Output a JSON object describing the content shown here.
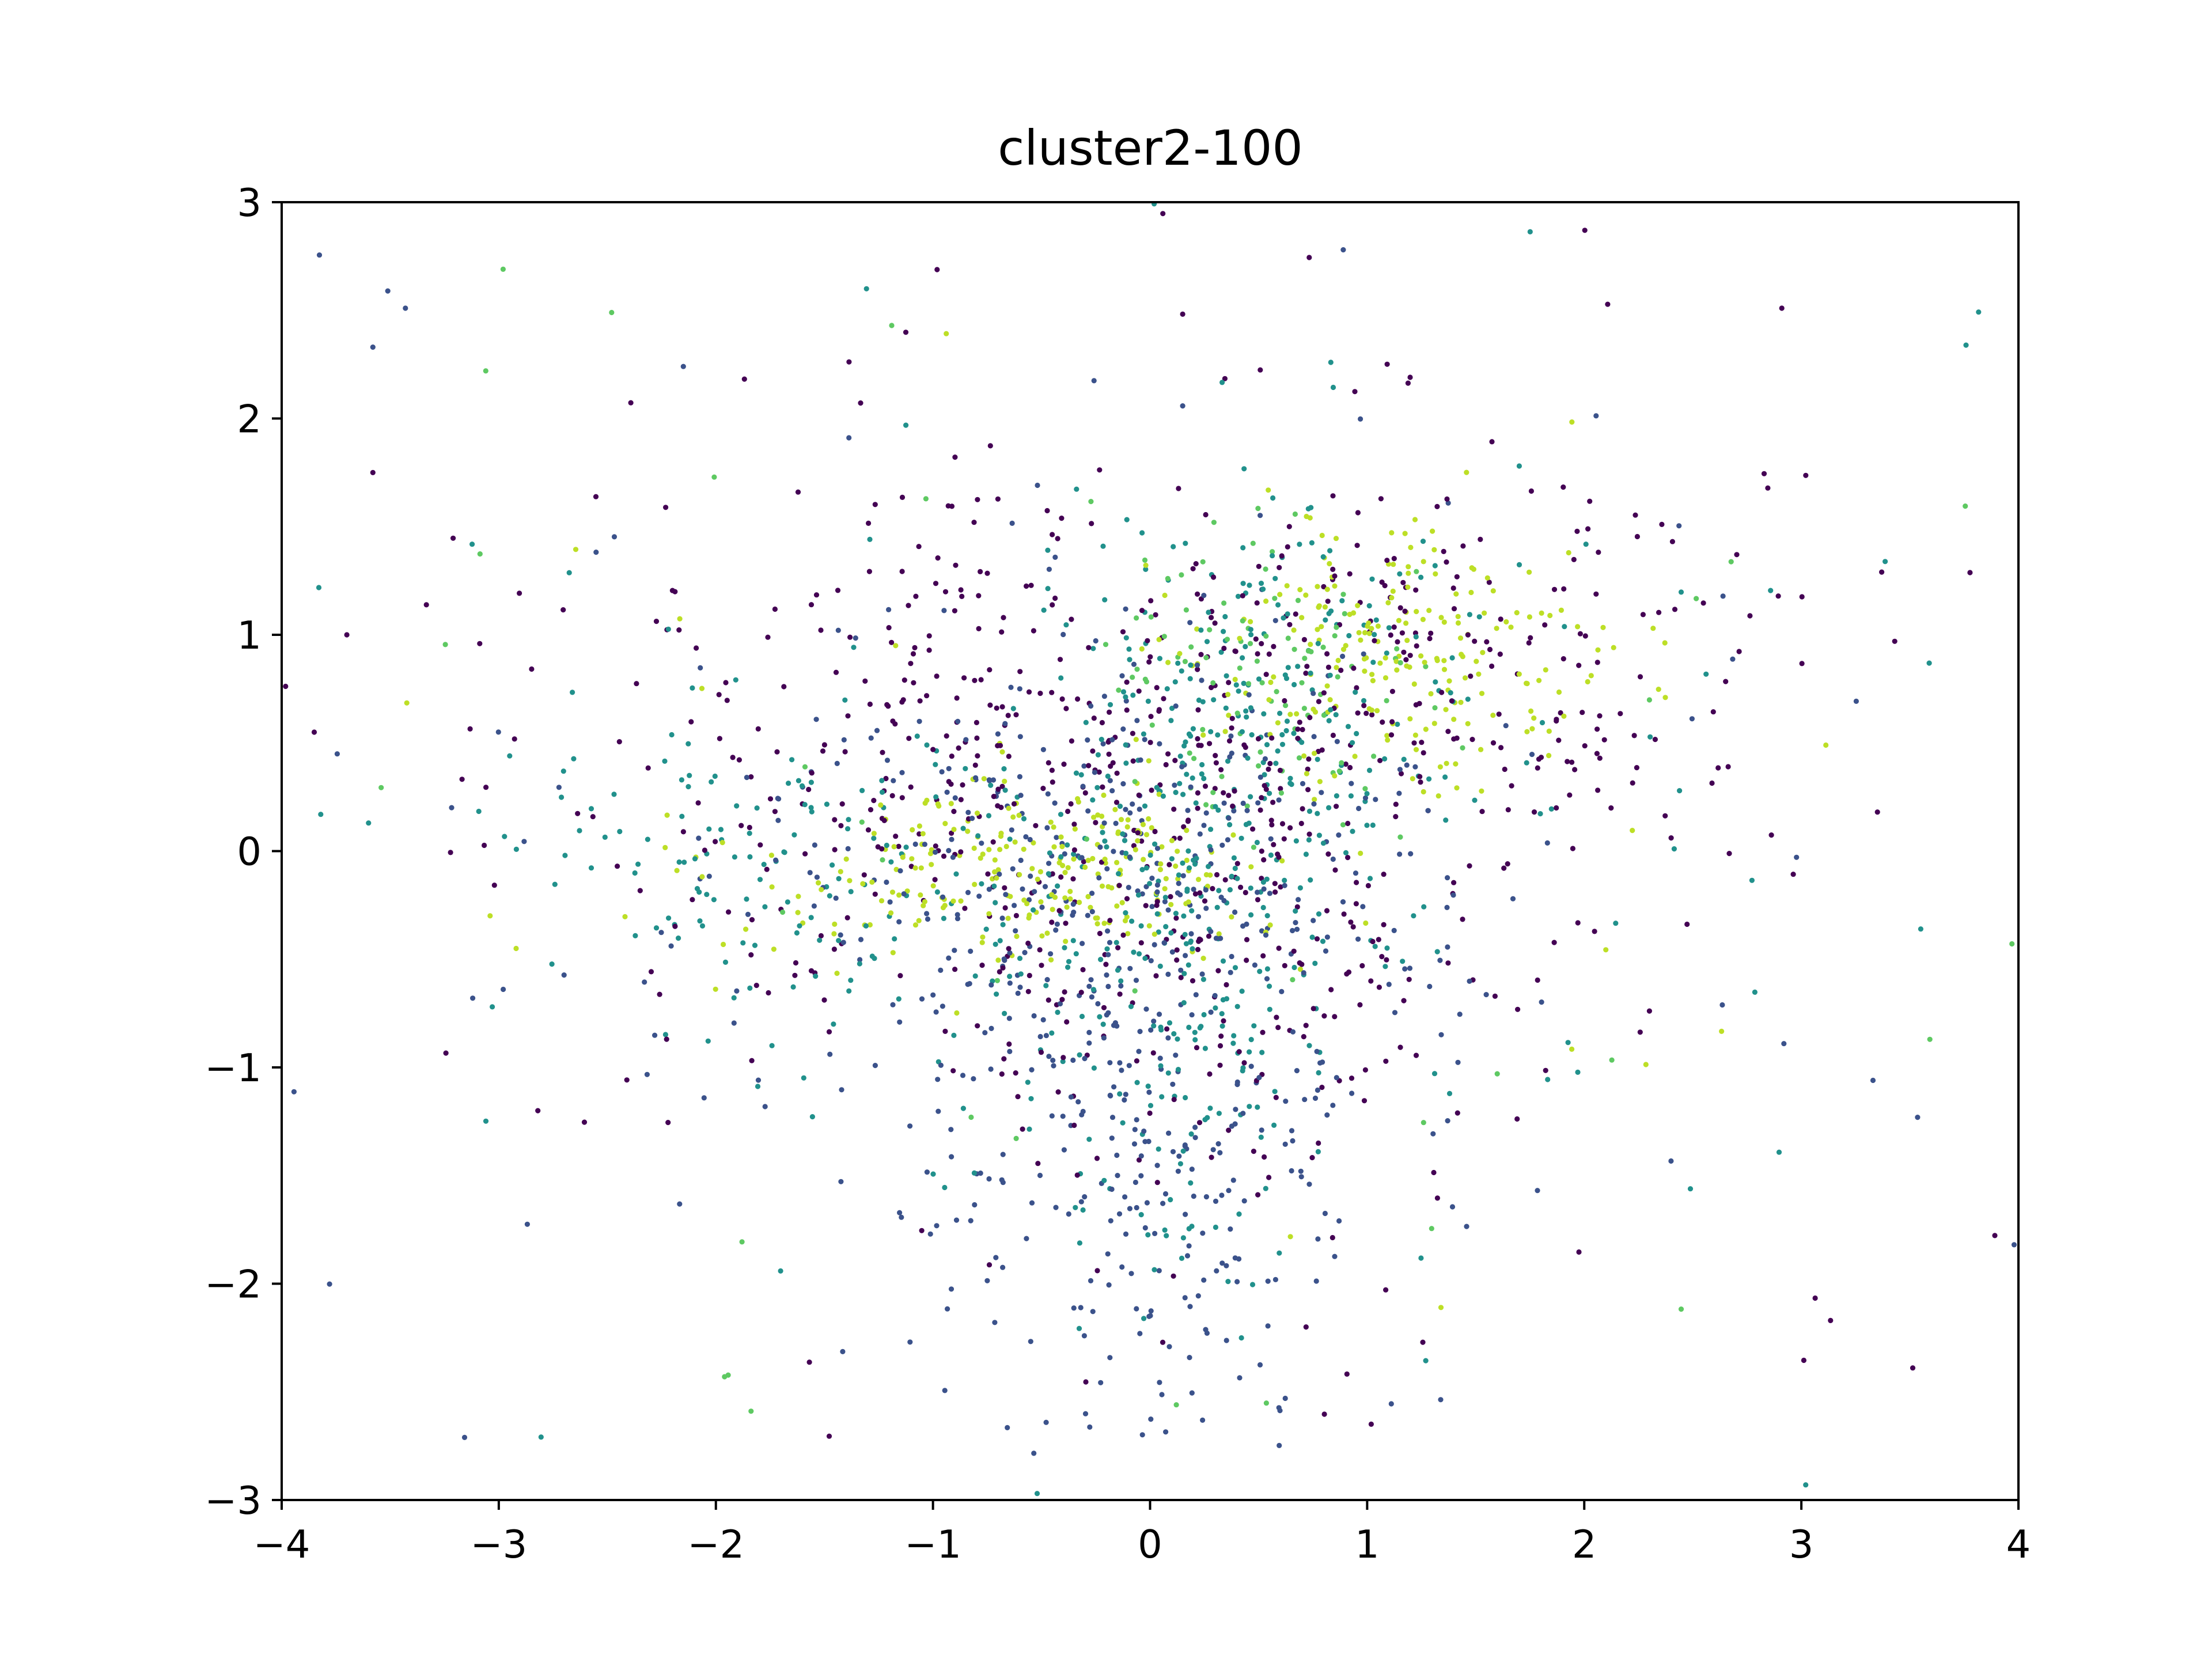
{
  "chart_data": {
    "type": "scatter",
    "title": "cluster2-100",
    "xlabel": "",
    "ylabel": "",
    "xlim": [
      -4,
      4
    ],
    "ylim": [
      -3,
      3
    ],
    "x_ticks": [
      -4,
      -3,
      -2,
      -1,
      0,
      1,
      2,
      3,
      4
    ],
    "y_ticks": [
      -3,
      -2,
      -1,
      0,
      1,
      2,
      3
    ],
    "x_tick_labels": [
      "−4",
      "−3",
      "−2",
      "−1",
      "0",
      "1",
      "2",
      "3",
      "4"
    ],
    "y_tick_labels": [
      "−3",
      "−2",
      "−1",
      "0",
      "1",
      "2",
      "3"
    ],
    "grid": false,
    "legend": "none",
    "colormap": "viridis",
    "palette": [
      "#440154",
      "#3b528b",
      "#21918c",
      "#5ec962",
      "#bddf26"
    ],
    "point_count_approx": 3000,
    "clusters": [
      {
        "center": [
          1.2,
          0.9
        ],
        "spread": [
          0.8,
          0.5
        ],
        "color_index": 0,
        "count": 220
      },
      {
        "center": [
          -0.9,
          0.5
        ],
        "spread": [
          0.9,
          0.6
        ],
        "color_index": 0,
        "count": 240
      },
      {
        "center": [
          0.2,
          -0.3
        ],
        "spread": [
          0.7,
          0.6
        ],
        "color_index": 0,
        "count": 240
      },
      {
        "center": [
          0.0,
          -1.2
        ],
        "spread": [
          0.5,
          0.8
        ],
        "color_index": 1,
        "count": 300
      },
      {
        "center": [
          -0.3,
          0.0
        ],
        "spread": [
          0.8,
          0.5
        ],
        "color_index": 1,
        "count": 240
      },
      {
        "center": [
          0.5,
          0.6
        ],
        "spread": [
          0.5,
          0.5
        ],
        "color_index": 2,
        "count": 240
      },
      {
        "center": [
          0.1,
          -0.7
        ],
        "spread": [
          0.4,
          0.6
        ],
        "color_index": 2,
        "count": 200
      },
      {
        "center": [
          -1.8,
          0.0
        ],
        "spread": [
          0.7,
          0.4
        ],
        "color_index": 2,
        "count": 120
      },
      {
        "center": [
          0.5,
          0.7
        ],
        "spread": [
          0.4,
          0.4
        ],
        "color_index": 3,
        "count": 90
      },
      {
        "center": [
          -0.6,
          -0.1
        ],
        "spread": [
          0.6,
          0.2
        ],
        "color_index": 4,
        "count": 230
      },
      {
        "center": [
          1.2,
          0.9
        ],
        "spread": [
          0.5,
          0.3
        ],
        "color_index": 4,
        "count": 200
      },
      {
        "center": [
          0.0,
          0.0
        ],
        "spread": [
          2.0,
          1.4
        ],
        "color_index": 0,
        "count": 140
      },
      {
        "center": [
          0.0,
          0.0
        ],
        "spread": [
          2.0,
          1.4
        ],
        "color_index": 1,
        "count": 120
      },
      {
        "center": [
          0.0,
          0.0
        ],
        "spread": [
          2.0,
          1.4
        ],
        "color_index": 2,
        "count": 110
      },
      {
        "center": [
          0.0,
          0.0
        ],
        "spread": [
          2.0,
          1.4
        ],
        "color_index": 3,
        "count": 40
      },
      {
        "center": [
          0.0,
          0.0
        ],
        "spread": [
          2.0,
          1.4
        ],
        "color_index": 4,
        "count": 30
      }
    ],
    "outliers": [
      {
        "x": -3.85,
        "y": 0.55,
        "color_index": 0
      },
      {
        "x": -3.7,
        "y": 1.0,
        "color_index": 0
      },
      {
        "x": -3.58,
        "y": 1.75,
        "color_index": 0
      },
      {
        "x": -3.58,
        "y": 2.33,
        "color_index": 1
      },
      {
        "x": -3.43,
        "y": 2.51,
        "color_index": 1
      },
      {
        "x": -2.98,
        "y": 2.69,
        "color_index": 3
      },
      {
        "x": -3.06,
        "y": 2.22,
        "color_index": 3
      },
      {
        "x": -2.48,
        "y": 2.49,
        "color_index": 3
      },
      {
        "x": -1.19,
        "y": 2.43,
        "color_index": 3
      },
      {
        "x": 0.89,
        "y": 2.78,
        "color_index": 1
      },
      {
        "x": 2.91,
        "y": 2.51,
        "color_index": 0
      },
      {
        "x": -3.82,
        "y": 0.17,
        "color_index": 2
      },
      {
        "x": -3.6,
        "y": 0.13,
        "color_index": 2
      },
      {
        "x": -2.92,
        "y": -0.45,
        "color_index": 4
      },
      {
        "x": -3.12,
        "y": -0.68,
        "color_index": 1
      },
      {
        "x": -3.03,
        "y": -0.72,
        "color_index": 2
      },
      {
        "x": -2.82,
        "y": -1.2,
        "color_index": 0
      },
      {
        "x": 3.55,
        "y": -0.36,
        "color_index": 2
      },
      {
        "x": 3.98,
        "y": -1.82,
        "color_index": 1
      },
      {
        "x": 3.02,
        "y": -2.93,
        "color_index": 2
      },
      {
        "x": -0.52,
        "y": -2.97,
        "color_index": 2
      },
      {
        "x": 3.33,
        "y": -1.06,
        "color_index": 1
      },
      {
        "x": 1.34,
        "y": -2.11,
        "color_index": 4
      },
      {
        "x": -1.96,
        "y": -2.43,
        "color_index": 3
      },
      {
        "x": 3.37,
        "y": 1.29,
        "color_index": 0
      },
      {
        "x": 3.43,
        "y": 0.97,
        "color_index": 0
      }
    ]
  }
}
